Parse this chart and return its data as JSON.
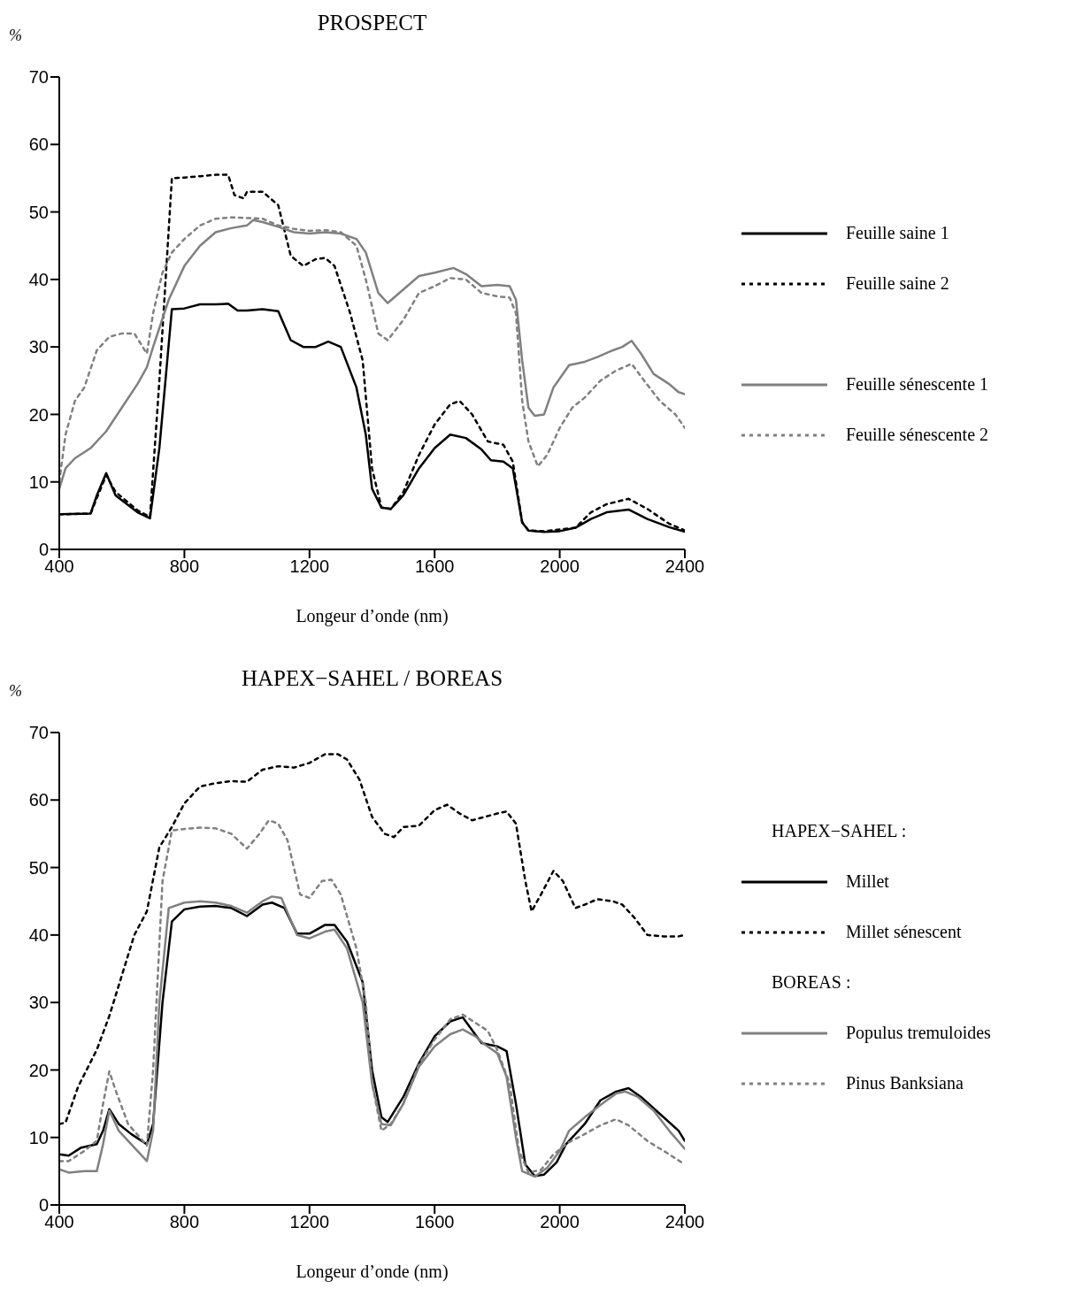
{
  "chart_data": [
    {
      "type": "line",
      "title": "PROSPECT",
      "ylabel": "%",
      "xlabel": "Longeur d’onde (nm)",
      "xlim": [
        400,
        2400
      ],
      "xticks": [
        400,
        800,
        1200,
        1600,
        2000,
        2400
      ],
      "ylim": [
        0,
        70
      ],
      "yticks": [
        0,
        10,
        20,
        30,
        40,
        50,
        60,
        70
      ],
      "legend": "right",
      "marker": "none",
      "series": [
        {
          "name": "Feuille saine 1",
          "color": "#000000",
          "line_style": "solid",
          "x": [
            400,
            500,
            520,
            550,
            580,
            650,
            690,
            720,
            760,
            800,
            850,
            900,
            940,
            970,
            1000,
            1050,
            1100,
            1140,
            1180,
            1220,
            1260,
            1300,
            1350,
            1380,
            1400,
            1430,
            1460,
            1500,
            1550,
            1600,
            1650,
            1700,
            1750,
            1780,
            1820,
            1850,
            1880,
            1900,
            1950,
            2000,
            2050,
            2100,
            2150,
            2220,
            2280,
            2350,
            2400
          ],
          "values": [
            5.2,
            5.3,
            8,
            11.3,
            8,
            5.5,
            4.6,
            15,
            35.6,
            35.7,
            36.3,
            36.3,
            36.4,
            35.4,
            35.4,
            35.6,
            35.3,
            31,
            30,
            30,
            30.8,
            30,
            24,
            17,
            9,
            6.2,
            6,
            8,
            12,
            15,
            17,
            16.5,
            14.8,
            13.2,
            13,
            12,
            4,
            2.8,
            2.6,
            2.7,
            3.2,
            4.5,
            5.5,
            5.9,
            4.5,
            3.3,
            2.6
          ]
        },
        {
          "name": "Feuille saine 2",
          "color": "#000000",
          "line_style": "dotted",
          "x": [
            400,
            500,
            550,
            580,
            650,
            690,
            720,
            760,
            800,
            850,
            900,
            940,
            960,
            990,
            1000,
            1050,
            1100,
            1140,
            1180,
            1220,
            1250,
            1280,
            1330,
            1370,
            1400,
            1430,
            1460,
            1500,
            1550,
            1600,
            1650,
            1680,
            1720,
            1770,
            1820,
            1850,
            1880,
            1900,
            1950,
            2050,
            2100,
            2150,
            2220,
            2280,
            2350,
            2400
          ],
          "values": [
            5.2,
            5.3,
            11,
            8.5,
            5.8,
            4.8,
            25,
            55,
            55.1,
            55.3,
            55.5,
            55.5,
            52.5,
            52,
            53,
            53,
            51,
            43.5,
            42,
            43,
            43.2,
            42,
            35,
            28,
            12,
            6.2,
            6,
            8.5,
            14,
            18.5,
            21.5,
            22,
            20,
            16,
            15.5,
            13,
            4,
            2.8,
            2.7,
            3.2,
            5.5,
            6.7,
            7.5,
            6,
            3.8,
            2.8
          ]
        },
        {
          "name": "Feuille sénescente 1",
          "color": "#808080",
          "line_style": "solid",
          "x": [
            400,
            420,
            450,
            500,
            550,
            600,
            650,
            680,
            700,
            750,
            800,
            850,
            900,
            950,
            1000,
            1020,
            1050,
            1100,
            1150,
            1200,
            1250,
            1300,
            1350,
            1380,
            1420,
            1450,
            1500,
            1550,
            1600,
            1660,
            1700,
            1750,
            1800,
            1840,
            1860,
            1880,
            1900,
            1920,
            1950,
            1980,
            2030,
            2080,
            2120,
            2170,
            2200,
            2230,
            2260,
            2300,
            2350,
            2380,
            2400
          ],
          "values": [
            9,
            12,
            13.5,
            15,
            17.5,
            21,
            24.5,
            27,
            30,
            37,
            42,
            45,
            47,
            47.6,
            48,
            48.8,
            48.5,
            47.8,
            47,
            46.8,
            47,
            46.8,
            46,
            44,
            38,
            36.5,
            38.5,
            40.5,
            41,
            41.7,
            40.8,
            39,
            39.2,
            39,
            37,
            28,
            21,
            19.8,
            20,
            24,
            27.3,
            27.8,
            28.5,
            29.5,
            30,
            30.9,
            29,
            26,
            24.5,
            23.3,
            23
          ]
        },
        {
          "name": "Feuille sénescente 2",
          "color": "#808080",
          "line_style": "dotted",
          "x": [
            400,
            420,
            450,
            480,
            520,
            560,
            600,
            640,
            680,
            700,
            730,
            760,
            800,
            850,
            900,
            950,
            1000,
            1050,
            1100,
            1150,
            1200,
            1250,
            1300,
            1350,
            1380,
            1420,
            1450,
            1500,
            1550,
            1600,
            1650,
            1700,
            1750,
            1800,
            1840,
            1860,
            1880,
            1900,
            1930,
            1960,
            2000,
            2040,
            2080,
            2130,
            2180,
            2230,
            2270,
            2320,
            2370,
            2400
          ],
          "values": [
            10,
            17,
            22,
            24,
            29.5,
            31.5,
            32,
            32,
            29,
            35,
            41,
            44,
            46,
            48,
            49,
            49.2,
            49.1,
            49,
            48,
            47.5,
            47.2,
            47.3,
            47,
            45,
            40,
            32,
            31,
            34,
            38,
            39,
            40.2,
            40,
            38,
            37.5,
            37.3,
            35,
            22,
            16,
            12.3,
            14,
            18,
            21,
            22.5,
            25,
            26.5,
            27.5,
            25,
            22,
            20,
            18
          ]
        }
      ]
    },
    {
      "type": "line",
      "title": "HAPEX−SAHEL / BOREAS",
      "ylabel": "%",
      "xlabel": "Longeur d’onde (nm)",
      "xlim": [
        400,
        2400
      ],
      "xticks": [
        400,
        800,
        1200,
        1600,
        2000,
        2400
      ],
      "ylim": [
        0,
        70
      ],
      "yticks": [
        0,
        10,
        20,
        30,
        40,
        50,
        60,
        70
      ],
      "legend": "right",
      "marker": "none",
      "annotations": [
        "HAPEX−SAHEL :",
        "BOREAS :"
      ],
      "series": [
        {
          "name": "Millet",
          "color": "#000000",
          "line_style": "solid",
          "x": [
            400,
            430,
            470,
            520,
            540,
            560,
            590,
            630,
            680,
            700,
            730,
            760,
            800,
            850,
            900,
            950,
            1000,
            1050,
            1080,
            1120,
            1160,
            1200,
            1250,
            1280,
            1320,
            1370,
            1400,
            1430,
            1450,
            1500,
            1550,
            1600,
            1650,
            1690,
            1750,
            1800,
            1830,
            1860,
            1890,
            1920,
            1950,
            1990,
            2020,
            2080,
            2130,
            2180,
            2220,
            2260,
            2320,
            2380,
            2400
          ],
          "values": [
            7.5,
            7.3,
            8.5,
            9,
            11,
            14.2,
            12,
            10.5,
            9,
            12,
            30,
            42,
            43.8,
            44.2,
            44.3,
            44,
            42.8,
            44.5,
            44.8,
            44,
            40.2,
            40.2,
            41.5,
            41.5,
            39,
            33,
            20,
            13,
            12.3,
            16,
            21,
            25,
            27.2,
            27.8,
            24,
            23.5,
            22.8,
            15,
            6,
            4.3,
            4.5,
            6.3,
            9,
            12,
            15.5,
            16.8,
            17.3,
            16,
            13.5,
            11,
            9.5
          ]
        },
        {
          "name": "Millet sénescent",
          "color": "#000000",
          "line_style": "dotted",
          "x": [
            400,
            420,
            460,
            520,
            560,
            600,
            640,
            680,
            720,
            760,
            800,
            850,
            900,
            950,
            1000,
            1050,
            1100,
            1150,
            1200,
            1250,
            1290,
            1320,
            1360,
            1400,
            1440,
            1470,
            1500,
            1550,
            1600,
            1640,
            1680,
            1720,
            1760,
            1800,
            1830,
            1860,
            1890,
            1910,
            1940,
            1980,
            2010,
            2050,
            2080,
            2120,
            2170,
            2200,
            2240,
            2280,
            2330,
            2380,
            2400
          ],
          "values": [
            12,
            12.2,
            17.5,
            23,
            28,
            34,
            40,
            43.5,
            53,
            56,
            59.5,
            62,
            62.5,
            62.8,
            62.7,
            64.5,
            65,
            64.8,
            65.5,
            66.8,
            66.8,
            66,
            63,
            57.5,
            55,
            54.5,
            56,
            56.2,
            58.5,
            59.3,
            58,
            57,
            57.5,
            58,
            58.3,
            56.5,
            48,
            43.5,
            46,
            49.5,
            48,
            44,
            44.5,
            45.3,
            45,
            44.5,
            42.5,
            40,
            39.8,
            39.8,
            40
          ]
        },
        {
          "name": "Populus tremuloides",
          "color": "#808080",
          "line_style": "solid",
          "x": [
            400,
            430,
            480,
            520,
            540,
            560,
            590,
            630,
            680,
            700,
            720,
            750,
            800,
            850,
            900,
            950,
            1000,
            1050,
            1080,
            1110,
            1160,
            1200,
            1250,
            1280,
            1320,
            1370,
            1400,
            1430,
            1460,
            1500,
            1550,
            1600,
            1650,
            1690,
            1730,
            1760,
            1800,
            1830,
            1860,
            1880,
            1920,
            1960,
            2000,
            2030,
            2080,
            2130,
            2180,
            2210,
            2250,
            2300,
            2350,
            2400
          ],
          "values": [
            5.3,
            4.8,
            5,
            5,
            9,
            14,
            11,
            9,
            6.5,
            11,
            30,
            44,
            44.8,
            45,
            44.8,
            44.3,
            43.3,
            45,
            45.7,
            45.5,
            40,
            39.5,
            40.5,
            40.8,
            38,
            30,
            18,
            12,
            11.8,
            15,
            20.5,
            23.5,
            25.3,
            26,
            25,
            23.8,
            22.5,
            19,
            10,
            5,
            4.2,
            5.5,
            8,
            11,
            13,
            14.8,
            16.5,
            16.8,
            16,
            14,
            11,
            8.3
          ]
        },
        {
          "name": "Pinus Banksiana",
          "color": "#808080",
          "line_style": "dotted",
          "x": [
            400,
            430,
            480,
            520,
            540,
            560,
            580,
            620,
            680,
            700,
            730,
            760,
            800,
            850,
            900,
            950,
            1000,
            1040,
            1070,
            1100,
            1130,
            1170,
            1200,
            1240,
            1270,
            1300,
            1350,
            1380,
            1400,
            1430,
            1460,
            1500,
            1550,
            1600,
            1650,
            1690,
            1730,
            1770,
            1800,
            1840,
            1870,
            1900,
            1940,
            1980,
            2030,
            2080,
            2130,
            2180,
            2220,
            2280,
            2350,
            2400
          ],
          "values": [
            6.5,
            6.5,
            8,
            9.5,
            15,
            19.8,
            17,
            12,
            8.8,
            20,
            48,
            55.5,
            55.7,
            55.9,
            55.8,
            55,
            52.8,
            55,
            57,
            56.5,
            54,
            46,
            45.5,
            48,
            48.2,
            46,
            38,
            30,
            18,
            11,
            12,
            15,
            20.8,
            24.5,
            27.5,
            28.2,
            27,
            25.8,
            23,
            18,
            8,
            4.8,
            5.2,
            7.5,
            9.3,
            10.5,
            11.8,
            12.7,
            11.8,
            9.5,
            7.5,
            6
          ]
        }
      ]
    }
  ]
}
